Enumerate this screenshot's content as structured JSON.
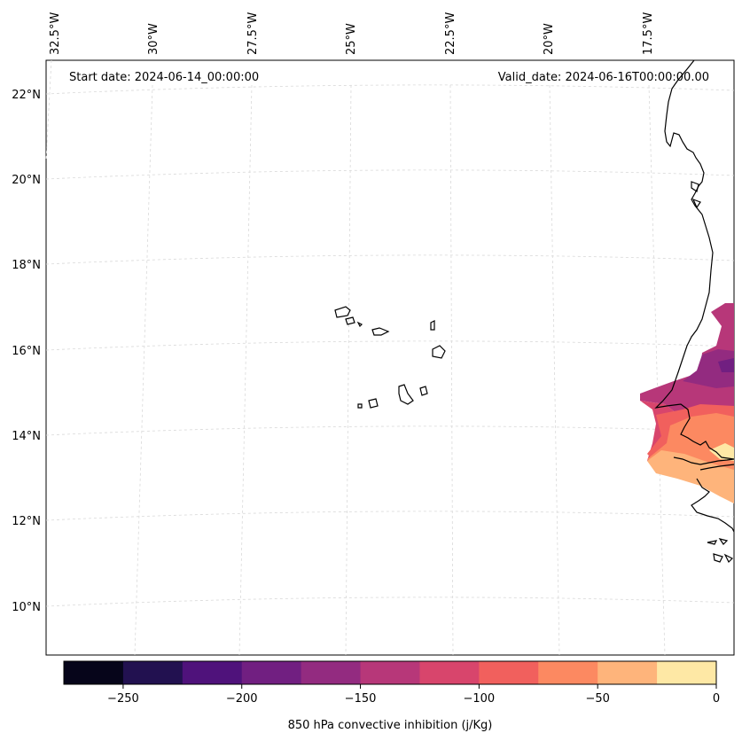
{
  "map": {
    "start_date": "Start date: 2024-06-14_00:00:00",
    "valid_date": "Valid_date: 2024-06-16T00:00:00.00",
    "lon_labels": [
      "32.5°W",
      "30°W",
      "27.5°W",
      "25°W",
      "22.5°W",
      "20°W",
      "17.5°W"
    ],
    "lat_labels": [
      "22°N",
      "20°N",
      "18°N",
      "16°N",
      "14°N",
      "12°N",
      "10°N"
    ],
    "coast_color": "#000000",
    "grid_color": "#cccccc"
  },
  "colorbar": {
    "label": "850 hPa convective inhibition (j/Kg)",
    "tick_labels": [
      "−250",
      "−200",
      "−150",
      "−100",
      "−50",
      "0"
    ],
    "bounds": [
      -275,
      -250,
      -225,
      -200,
      -175,
      -150,
      -125,
      -100,
      -75,
      -50,
      -25,
      0
    ],
    "colors": [
      "#06051a",
      "#221150",
      "#4f127b",
      "#711f81",
      "#932b80",
      "#b73779",
      "#d8456c",
      "#f1605d",
      "#fc8961",
      "#feb47b",
      "#fee8a5"
    ]
  }
}
